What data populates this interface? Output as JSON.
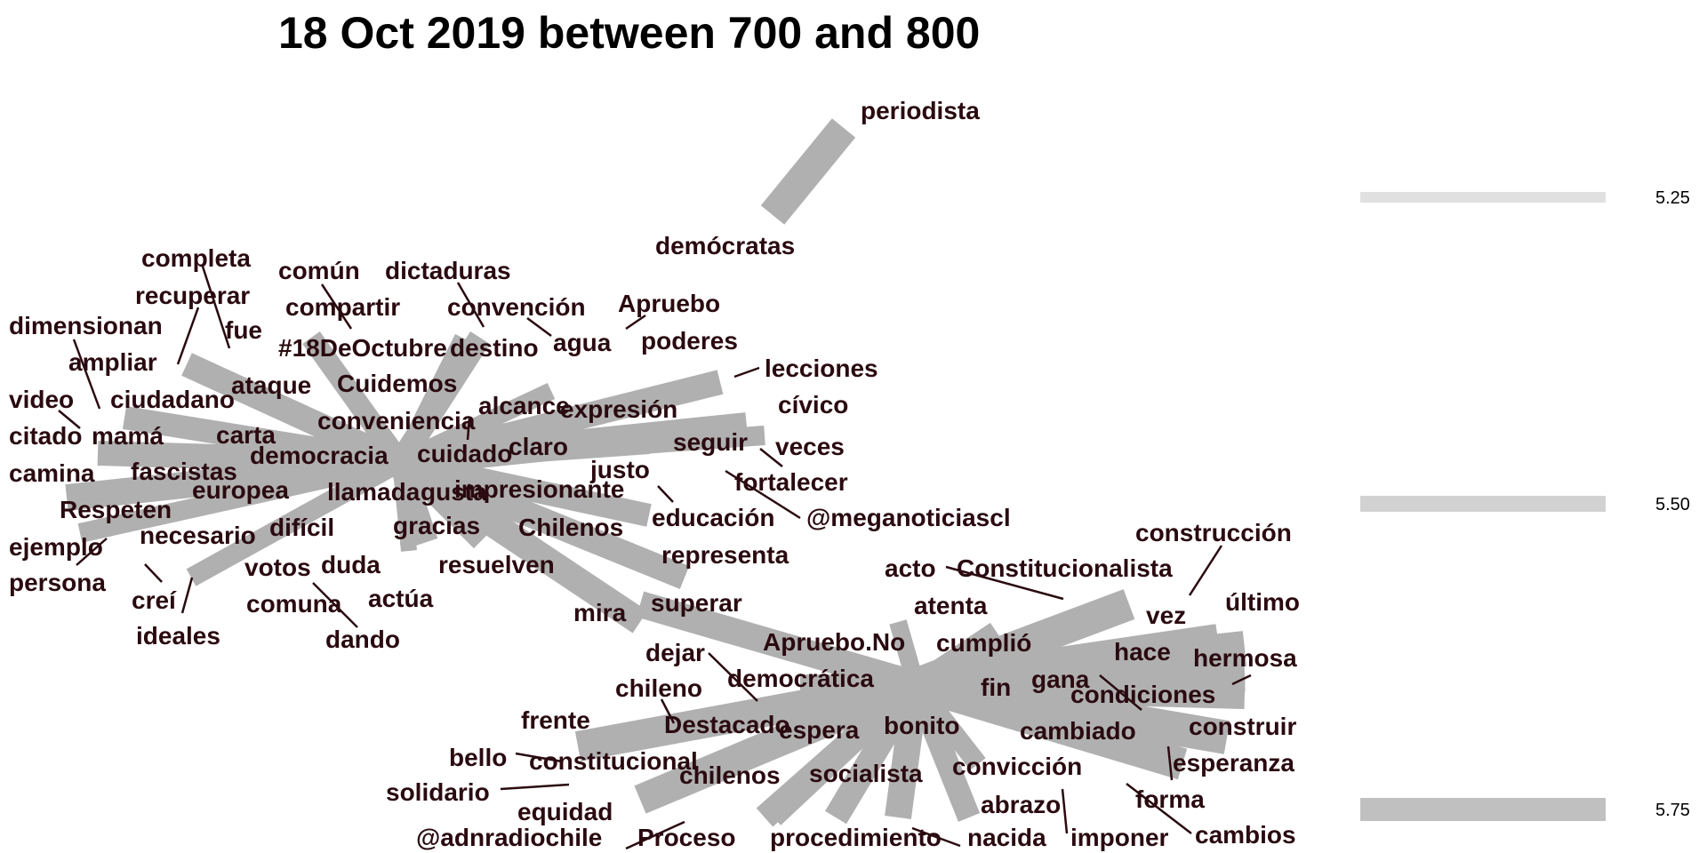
{
  "title": "18 Oct 2019 between 700 and 800",
  "legend": [
    {
      "value": 5.25,
      "label": "5.25",
      "color": "#e0e0e0"
    },
    {
      "value": 5.5,
      "label": "5.50",
      "color": "#d2d2d2"
    },
    {
      "value": 5.75,
      "label": "5.75",
      "color": "#c0c0c0"
    }
  ],
  "colors": {
    "edge": "#b0b0b0",
    "text": "#2a0a10",
    "leader": "#2a0a10"
  },
  "words": [
    "periodista",
    "demócratas",
    "completa",
    "común",
    "dictaduras",
    "recuperar",
    "compartir",
    "convención",
    "Apruebo",
    "dimensionan",
    "fue",
    "#18DeOctubre",
    "destino",
    "agua",
    "poderes",
    "ampliar",
    "ataque",
    "Cuidemos",
    "lecciones",
    "video",
    "ciudadano",
    "alcance",
    "expresión",
    "cívico",
    "citado",
    "mamá",
    "carta",
    "conveniencia",
    "seguir",
    "veces",
    "camina",
    "fascistas",
    "democracia",
    "cuidado",
    "claro",
    "justo",
    "fortalecer",
    "Respeten",
    "europea",
    "llamada",
    "gusta",
    "impresionante",
    "educación",
    "@meganoticiascl",
    "ejemplo",
    "necesario",
    "difícil",
    "gracias",
    "Chilenos",
    "persona",
    "votos",
    "duda",
    "resuelven",
    "representa",
    "construcción",
    "creí",
    "comuna",
    "actúa",
    "acto",
    "Constitucionalista",
    "ideales",
    "dando",
    "mira",
    "superar",
    "atenta",
    "vez",
    "último",
    "Apruebo.No",
    "cumplió",
    "hace",
    "hermosa",
    "dejar",
    "democrática",
    "fin",
    "gana",
    "condiciones",
    "chileno",
    "frente",
    "Destacado",
    "espera",
    "bonito",
    "cambiado",
    "construir",
    "bello",
    "constitucional",
    "convicción",
    "esperanza",
    "solidario",
    "chilenos",
    "socialista",
    "forma",
    "equidad",
    "abrazo",
    "cambios",
    "@adnradiochile",
    "Proceso",
    "procedimiento",
    "nacida",
    "imponer"
  ]
}
